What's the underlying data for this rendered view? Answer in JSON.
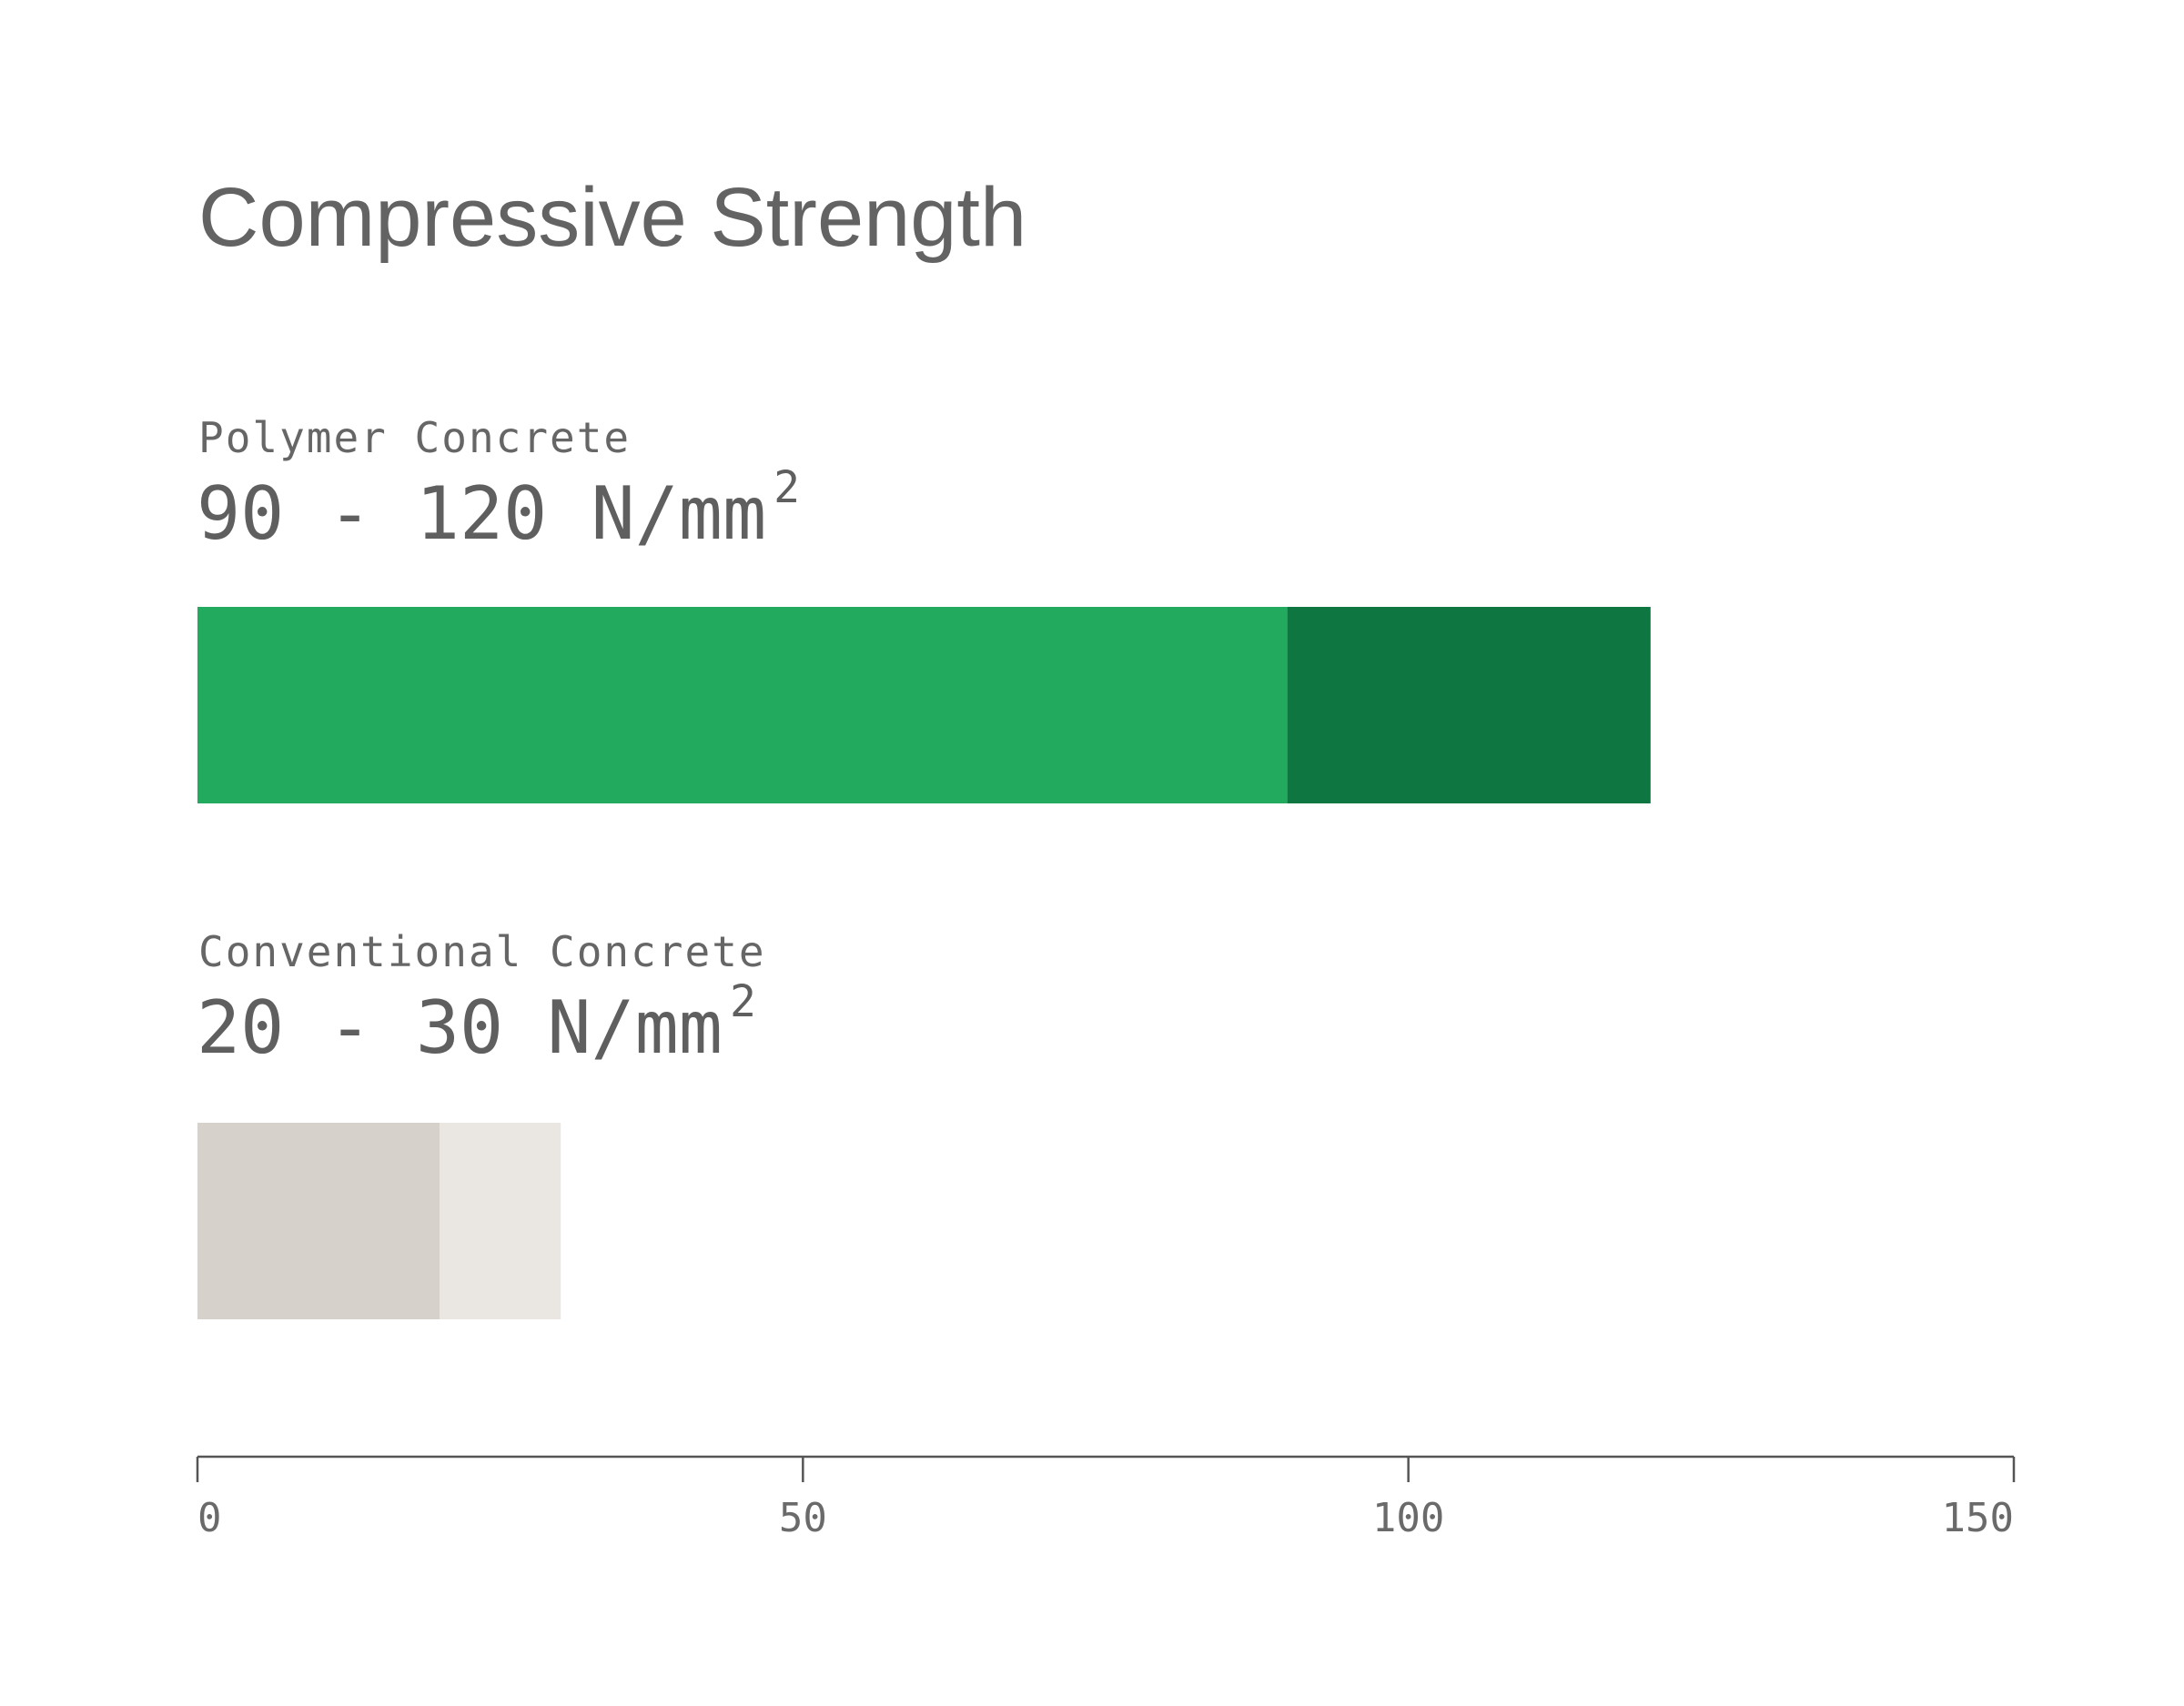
{
  "chart_data": {
    "type": "bar",
    "orientation": "horizontal",
    "title": "Compressive Strength",
    "xlabel": "",
    "ylabel": "",
    "xlim": [
      0,
      150
    ],
    "ticks": [
      "0",
      "50",
      "100",
      "150"
    ],
    "tick_values": [
      0,
      50,
      100,
      150
    ],
    "grid": false,
    "series": [
      {
        "name": "Polymer Concrete",
        "range_label": "90 - 120 N/mm",
        "unit_superscript": "2",
        "min": 90,
        "max": 120,
        "color_min": "#22aa5f",
        "color_range": "#0e7640"
      },
      {
        "name": "Conventional Concrete",
        "range_label": "20 - 30 N/mm",
        "unit_superscript": "2",
        "min": 20,
        "max": 30,
        "color_min": "#d6d1ca",
        "color_range": "#eae6e1"
      }
    ]
  }
}
